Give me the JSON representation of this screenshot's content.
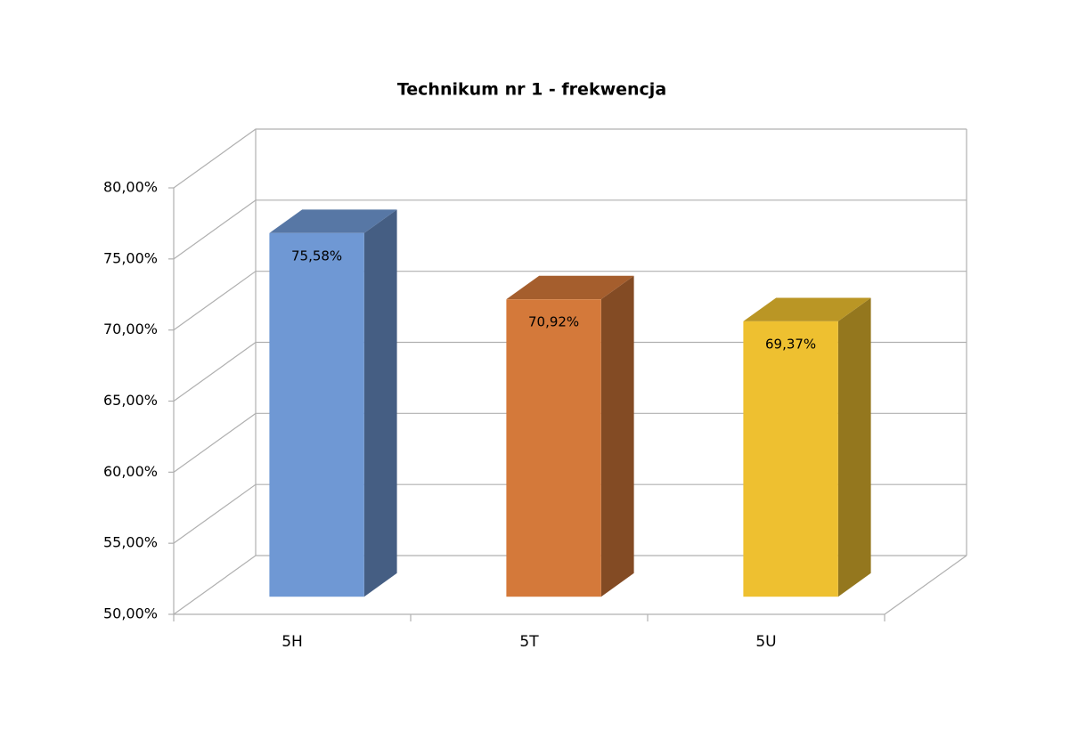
{
  "chart_data": {
    "type": "bar3d",
    "title": "Technikum nr 1 - frekwencja",
    "categories": [
      "5H",
      "5T",
      "5U"
    ],
    "values": [
      75.58,
      70.92,
      69.37
    ],
    "value_labels": [
      "75,58%",
      "70,92%",
      "69,37%"
    ],
    "colors": [
      "#6f98d4",
      "#d4793a",
      "#eec030"
    ],
    "ylim": [
      50,
      80
    ],
    "yticks": [
      {
        "value": 50,
        "label": "50,00%"
      },
      {
        "value": 55,
        "label": "55,00%"
      },
      {
        "value": 60,
        "label": "60,00%"
      },
      {
        "value": 65,
        "label": "65,00%"
      },
      {
        "value": 70,
        "label": "70,00%"
      },
      {
        "value": 75,
        "label": "75,00%"
      },
      {
        "value": 80,
        "label": "80,00%"
      }
    ],
    "grid": true
  }
}
